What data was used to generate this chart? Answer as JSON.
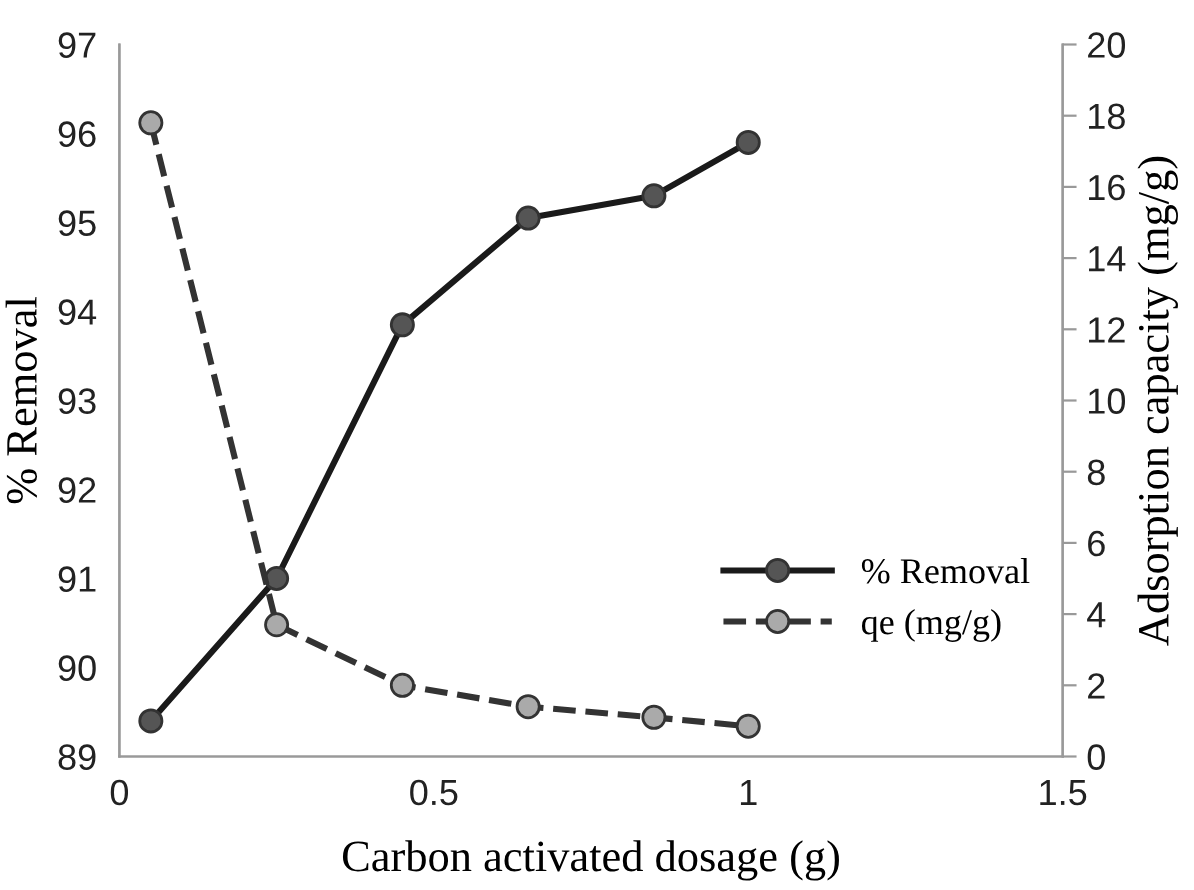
{
  "chart_data": {
    "type": "line",
    "x": [
      0.05,
      0.25,
      0.45,
      0.65,
      0.85,
      1.0
    ],
    "xlabel": "Carbon activated dosage (g)",
    "ylabel": "% Removal",
    "y2label": "Adsorption capacity (mg/g)",
    "series": [
      {
        "name": "% Removal",
        "color": "#1a1a1a",
        "values": [
          89.4,
          91.0,
          93.85,
          95.05,
          95.3,
          95.9
        ],
        "line_style": "solid",
        "marker": "circle"
      },
      {
        "name": "qe (mg/g)",
        "color": "#333333",
        "values": [
          17.8,
          3.7,
          2.0,
          1.4,
          1.1,
          0.85
        ],
        "axis": "y2",
        "line_style": "dashed",
        "marker": "circle"
      }
    ],
    "xlim": [
      0,
      1.5
    ],
    "xticks": [
      0,
      0.5,
      1,
      1.5
    ],
    "ylim": [
      89,
      97
    ],
    "yticks": [
      89,
      90,
      91,
      92,
      93,
      94,
      95,
      96,
      97
    ],
    "y2lim": [
      0,
      20
    ],
    "y2ticks": [
      0,
      2,
      4,
      6,
      8,
      10,
      12,
      14,
      16,
      18,
      20
    ],
    "grid": false,
    "legend": "right"
  }
}
